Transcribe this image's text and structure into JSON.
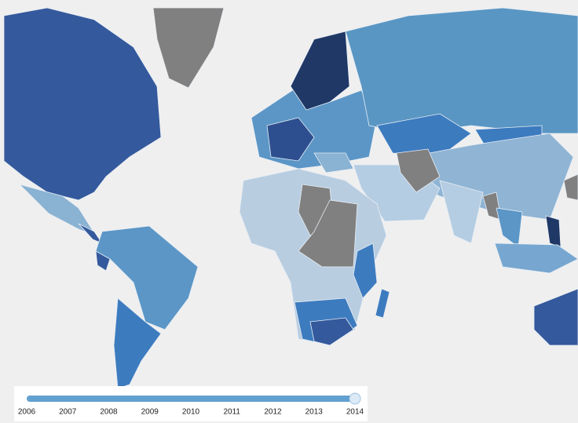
{
  "slider": {
    "ticks": [
      "2006",
      "2007",
      "2008",
      "2009",
      "2010",
      "2011",
      "2012",
      "2013",
      "2014"
    ]
  }
}
